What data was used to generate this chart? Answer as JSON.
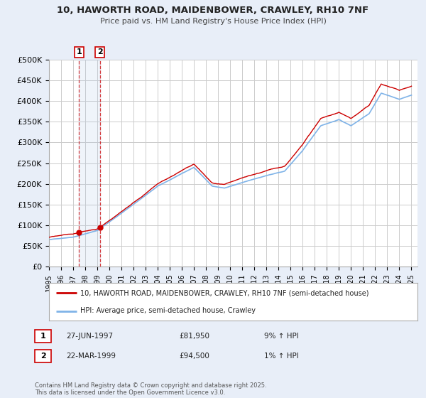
{
  "title_line1": "10, HAWORTH ROAD, MAIDENBOWER, CRAWLEY, RH10 7NF",
  "title_line2": "Price paid vs. HM Land Registry's House Price Index (HPI)",
  "ylim": [
    0,
    500000
  ],
  "yticks": [
    0,
    50000,
    100000,
    150000,
    200000,
    250000,
    300000,
    350000,
    400000,
    450000,
    500000
  ],
  "ytick_labels": [
    "£0",
    "£50K",
    "£100K",
    "£150K",
    "£200K",
    "£250K",
    "£300K",
    "£350K",
    "£400K",
    "£450K",
    "£500K"
  ],
  "background_color": "#e8eef8",
  "plot_bg_color": "#ffffff",
  "grid_color": "#cccccc",
  "hpi_color": "#7fb3e8",
  "price_color": "#cc0000",
  "sale1_date_x": 1997.49,
  "sale1_price": 81950,
  "sale2_date_x": 1999.22,
  "sale2_price": 94500,
  "legend_label_price": "10, HAWORTH ROAD, MAIDENBOWER, CRAWLEY, RH10 7NF (semi-detached house)",
  "legend_label_hpi": "HPI: Average price, semi-detached house, Crawley",
  "sale1_text": "27-JUN-1997",
  "sale1_amount": "£81,950",
  "sale1_hpi": "9% ↑ HPI",
  "sale2_text": "22-MAR-1999",
  "sale2_amount": "£94,500",
  "sale2_hpi": "1% ↑ HPI",
  "copyright_text": "Contains HM Land Registry data © Crown copyright and database right 2025.\nThis data is licensed under the Open Government Licence v3.0.",
  "xtick_years": [
    1995,
    1996,
    1997,
    1998,
    1999,
    2000,
    2001,
    2002,
    2003,
    2004,
    2005,
    2006,
    2007,
    2008,
    2009,
    2010,
    2011,
    2012,
    2013,
    2014,
    2015,
    2016,
    2017,
    2018,
    2019,
    2020,
    2021,
    2022,
    2023,
    2024,
    2025
  ],
  "hpi_anchors_t": [
    1995,
    1997,
    1999,
    2001,
    2004,
    2007,
    2008.5,
    2009.5,
    2013,
    2014.5,
    2016,
    2017.5,
    2019,
    2020,
    2021.5,
    2022.5,
    2024,
    2025
  ],
  "hpi_anchors_v": [
    65000,
    72000,
    88000,
    130000,
    195000,
    240000,
    195000,
    190000,
    220000,
    230000,
    280000,
    340000,
    355000,
    340000,
    370000,
    420000,
    405000,
    415000
  ]
}
